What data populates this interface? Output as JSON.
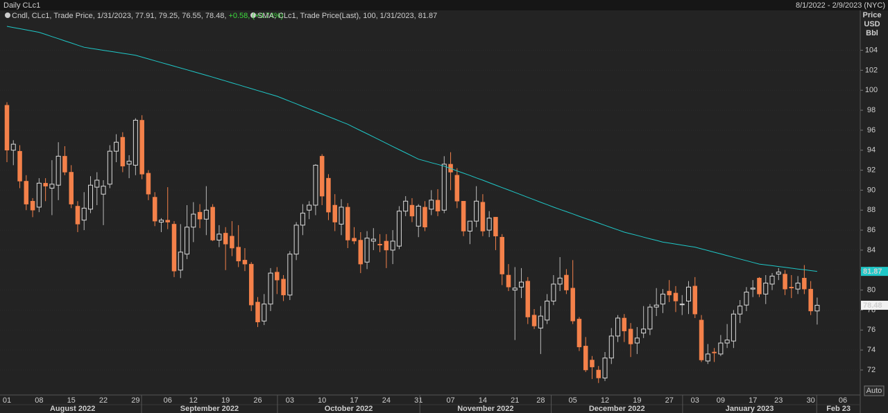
{
  "chart_data": {
    "type": "candlestick",
    "title": "Daily CLc1",
    "date_range": "8/1/2022 - 2/9/2023 (NYC)",
    "legend": [
      "Cndl, CLc1, Trade Price, 1/31/2023, 77.91, 79.25, 76.55, 78.48,",
      "+0.58, (+0.74%)",
      "SMA, CLc1, Trade Price(Last),  100, 1/31/2023, 81.87"
    ],
    "y_axis_label": [
      "Price",
      "USD",
      "Bbl"
    ],
    "auto_button": "Auto",
    "months": [
      "August 2022",
      "September 2022",
      "October 2022",
      "November 2022",
      "December 2022",
      "January 2023",
      "Feb 23"
    ],
    "up_color": "#dddddd",
    "down_color": "#f4814a",
    "change_color": "#3ddc3d",
    "grid": true,
    "ylim": [
      69.5,
      108.2
    ],
    "yticks": [
      72,
      74,
      76,
      78,
      80,
      82,
      84,
      86,
      88,
      90,
      92,
      94,
      96,
      98,
      100,
      102,
      104
    ],
    "categories": [
      "01",
      null,
      null,
      null,
      null,
      "08",
      null,
      null,
      null,
      null,
      "15",
      null,
      null,
      null,
      null,
      "22",
      null,
      null,
      null,
      null,
      "29",
      null,
      null,
      null,
      null,
      "06",
      null,
      null,
      null,
      "12",
      null,
      null,
      null,
      null,
      "19",
      null,
      null,
      null,
      null,
      "26",
      null,
      null,
      null,
      null,
      "03",
      null,
      null,
      null,
      null,
      "10",
      null,
      null,
      null,
      null,
      "17",
      null,
      null,
      null,
      null,
      "24",
      null,
      null,
      null,
      null,
      "31",
      null,
      null,
      null,
      null,
      "07",
      null,
      null,
      null,
      null,
      "14",
      null,
      null,
      null,
      null,
      "21",
      null,
      null,
      null,
      "28",
      null,
      null,
      null,
      null,
      "05",
      null,
      null,
      null,
      null,
      "12",
      null,
      null,
      null,
      null,
      "19",
      null,
      null,
      null,
      null,
      "27",
      null,
      null,
      null,
      "03",
      null,
      null,
      null,
      "09",
      null,
      null,
      null,
      null,
      "17",
      null,
      null,
      null,
      "23",
      null,
      null,
      null,
      null,
      "30",
      null,
      null,
      null,
      null,
      "06"
    ],
    "open": [
      98.5,
      94.0,
      93.9,
      90.9,
      88.9,
      88.3,
      90.7,
      90.2,
      90.5,
      93.4,
      91.8,
      88.4,
      87.0,
      88.1,
      90.3,
      89.6,
      90.6,
      93.9,
      95.3,
      92.6,
      92.5,
      97.0,
      91.7,
      89.3,
      86.8,
      87.0,
      86.6,
      82.0,
      83.6,
      86.3,
      87.8,
      87.1,
      88.3,
      85.0,
      85.7,
      85.4,
      84.3,
      83.0,
      82.6,
      78.8,
      76.9,
      78.6,
      81.8,
      81.1,
      79.5,
      83.6,
      86.5,
      88.0,
      88.5,
      93.4,
      91.2,
      88.5,
      86.6,
      88.3,
      85.2,
      85.0,
      82.8,
      84.9,
      84.6,
      84.9,
      84.0,
      84.4,
      87.9,
      88.5,
      86.4,
      88.3,
      88.1,
      89.0,
      88.0,
      92.6,
      91.5,
      88.9,
      85.9,
      86.9,
      88.8,
      86.0,
      87.3,
      85.3,
      81.5,
      80.0,
      80.3,
      80.9,
      77.5,
      76.2,
      77.0,
      78.9,
      80.6,
      81.5,
      80.2,
      77.1,
      74.4,
      73.0,
      72.0,
      71.2,
      73.2,
      75.4,
      77.2,
      76.1,
      74.7,
      75.7,
      76.1,
      78.3,
      78.6,
      79.9,
      79.7,
      78.6,
      78.9,
      80.4,
      77.0,
      72.9,
      73.8,
      73.6,
      74.7,
      74.9,
      77.6,
      78.5,
      80.1,
      81.2,
      79.6,
      80.6,
      81.6,
      81.6,
      80.3,
      80.1,
      81.2,
      80.1,
      77.91,
      null,
      null,
      null,
      null
    ],
    "high": [
      98.8,
      95.0,
      94.5,
      91.5,
      89.2,
      91.2,
      91.2,
      93.0,
      94.8,
      94.4,
      92.5,
      88.9,
      89.8,
      91.4,
      91.8,
      91.0,
      94.5,
      95.6,
      95.8,
      93.5,
      97.2,
      97.5,
      92.0,
      89.8,
      87.2,
      90.3,
      86.9,
      86.6,
      88.5,
      88.8,
      88.6,
      90.4,
      88.6,
      86.5,
      86.3,
      86.9,
      86.5,
      84.2,
      82.8,
      79.3,
      79.6,
      82.2,
      82.3,
      81.5,
      83.9,
      86.8,
      88.6,
      88.9,
      92.6,
      93.6,
      91.6,
      89.6,
      89.1,
      88.7,
      86.3,
      85.8,
      85.9,
      86.2,
      85.6,
      85.6,
      86.0,
      88.4,
      89.4,
      89.2,
      88.6,
      88.9,
      90.0,
      90.1,
      93.4,
      93.8,
      92.2,
      88.9,
      86.9,
      90.4,
      89.6,
      87.9,
      87.3,
      85.6,
      82.6,
      82.3,
      82.2,
      81.3,
      78.1,
      78.4,
      79.6,
      81.5,
      83.3,
      82.1,
      83.0,
      77.3,
      75.3,
      73.4,
      72.4,
      73.8,
      76.2,
      77.5,
      77.6,
      76.7,
      76.3,
      78.4,
      78.6,
      80.2,
      80.1,
      81.0,
      80.4,
      79.5,
      80.9,
      81.3,
      77.5,
      74.6,
      74.2,
      75.5,
      76.6,
      78.0,
      79.0,
      80.3,
      81.0,
      81.3,
      81.5,
      81.7,
      82.2,
      82.0,
      81.5,
      81.4,
      82.5,
      80.9,
      79.25,
      null,
      null,
      null,
      null
    ],
    "low": [
      92.8,
      92.5,
      90.2,
      88.0,
      87.3,
      87.8,
      88.9,
      87.5,
      89.0,
      91.5,
      88.2,
      85.8,
      86.0,
      87.7,
      88.5,
      86.5,
      90.2,
      92.8,
      91.8,
      91.2,
      91.5,
      91.1,
      89.0,
      86.4,
      85.8,
      86.1,
      81.3,
      81.2,
      83.1,
      84.8,
      86.2,
      85.5,
      84.9,
      84.3,
      82.0,
      83.4,
      82.3,
      81.9,
      77.9,
      76.3,
      76.5,
      77.9,
      79.6,
      78.9,
      79.0,
      83.0,
      85.5,
      87.1,
      87.5,
      88.5,
      87.0,
      85.9,
      85.5,
      84.2,
      84.6,
      81.7,
      82.1,
      84.0,
      83.8,
      82.2,
      82.6,
      84.1,
      87.4,
      86.8,
      85.3,
      85.9,
      87.5,
      87.4,
      87.7,
      90.0,
      88.2,
      85.4,
      84.6,
      86.3,
      85.4,
      85.3,
      84.0,
      80.5,
      79.9,
      75.0,
      79.2,
      76.6,
      76.1,
      73.6,
      76.6,
      78.5,
      79.9,
      79.6,
      76.6,
      73.9,
      71.8,
      71.1,
      70.7,
      70.9,
      72.6,
      74.8,
      74.8,
      73.3,
      73.6,
      75.2,
      75.5,
      77.4,
      77.7,
      78.8,
      77.8,
      77.5,
      77.6,
      77.2,
      72.8,
      72.6,
      72.8,
      73.4,
      74.2,
      74.2,
      76.7,
      77.9,
      79.3,
      79.3,
      78.6,
      80.0,
      81.0,
      79.5,
      79.2,
      79.6,
      79.6,
      77.5,
      76.55,
      null,
      null,
      null,
      null
    ],
    "close": [
      94.0,
      94.6,
      90.9,
      88.6,
      88.0,
      90.7,
      90.4,
      90.6,
      93.4,
      91.8,
      88.6,
      86.6,
      88.2,
      90.5,
      91.0,
      90.4,
      93.9,
      94.8,
      92.4,
      92.9,
      97.0,
      91.6,
      89.6,
      86.9,
      87.0,
      86.8,
      81.9,
      83.8,
      86.3,
      87.6,
      87.1,
      88.0,
      85.0,
      85.6,
      84.6,
      84.2,
      82.9,
      82.6,
      78.5,
      76.8,
      78.6,
      81.7,
      81.0,
      79.5,
      83.6,
      86.5,
      87.7,
      88.5,
      92.5,
      89.4,
      87.8,
      86.8,
      88.3,
      85.0,
      84.9,
      82.6,
      85.2,
      85.1,
      84.5,
      84.0,
      84.9,
      87.9,
      88.9,
      87.4,
      88.4,
      86.3,
      89.0,
      87.9,
      92.6,
      91.8,
      88.9,
      85.9,
      86.9,
      88.9,
      85.9,
      87.2,
      85.4,
      81.6,
      80.3,
      80.2,
      80.8,
      77.3,
      76.4,
      77.4,
      78.9,
      80.6,
      81.2,
      80.0,
      76.9,
      74.3,
      72.0,
      72.3,
      71.2,
      73.2,
      75.4,
      77.2,
      75.9,
      74.6,
      75.2,
      76.1,
      78.3,
      78.5,
      79.6,
      79.5,
      78.9,
      78.6,
      80.3,
      77.6,
      73.0,
      73.6,
      73.7,
      74.7,
      75.0,
      77.6,
      78.4,
      79.8,
      80.2,
      79.6,
      80.7,
      81.4,
      81.8,
      80.1,
      80.2,
      80.7,
      80.1,
      77.9,
      78.48,
      null,
      null,
      null,
      null
    ],
    "sma": {
      "color": "#1fc8c8",
      "values": [
        106.4,
        106.28,
        106.16,
        106.04,
        105.92,
        105.8,
        105.59,
        105.37,
        105.16,
        104.94,
        104.73,
        104.51,
        104.3,
        104.2,
        104.1,
        104.0,
        103.9,
        103.8,
        103.7,
        103.6,
        103.5,
        103.32,
        103.14,
        102.95,
        102.77,
        102.59,
        102.41,
        102.23,
        102.05,
        101.86,
        101.68,
        101.5,
        101.31,
        101.12,
        100.93,
        100.74,
        100.55,
        100.35,
        100.16,
        99.97,
        99.78,
        99.59,
        99.4,
        99.15,
        98.89,
        98.64,
        98.38,
        98.13,
        97.87,
        97.62,
        97.36,
        97.11,
        96.85,
        96.6,
        96.28,
        95.96,
        95.65,
        95.33,
        95.01,
        94.69,
        94.37,
        94.05,
        93.74,
        93.42,
        93.1,
        92.93,
        92.75,
        92.58,
        92.4,
        92.17,
        91.93,
        91.7,
        91.47,
        91.23,
        91.0,
        90.75,
        90.51,
        90.26,
        90.02,
        89.77,
        89.53,
        89.28,
        89.04,
        88.79,
        88.55,
        88.3,
        88.07,
        87.85,
        87.62,
        87.39,
        87.16,
        86.94,
        86.71,
        86.48,
        86.25,
        86.03,
        85.8,
        85.63,
        85.47,
        85.3,
        85.13,
        84.97,
        84.8,
        84.7,
        84.6,
        84.5,
        84.4,
        84.3,
        84.13,
        83.96,
        83.79,
        83.62,
        83.45,
        83.28,
        83.11,
        82.94,
        82.77,
        82.6,
        82.52,
        82.44,
        82.36,
        82.28,
        82.19,
        82.11,
        82.03,
        81.95,
        81.87,
        null,
        null,
        null,
        null
      ]
    }
  }
}
